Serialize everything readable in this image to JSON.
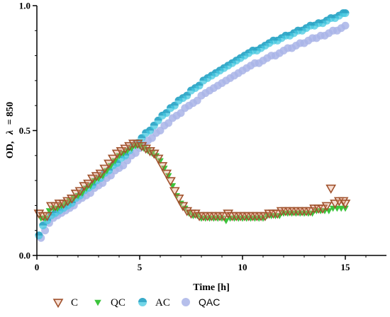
{
  "chart_data": {
    "type": "scatter",
    "title": "",
    "xlabel": "Time [h]",
    "ylabel_prefix": "OD,",
    "ylabel_lambda": "λ",
    "ylabel_suffix": "= 850",
    "xlim": [
      0,
      17
    ],
    "ylim": [
      0,
      1
    ],
    "xticks": [
      "0",
      "5",
      "10",
      "15"
    ],
    "yticks": [
      "0.0",
      "0.5",
      "1.0"
    ],
    "grid": false,
    "legend_position": "bottom",
    "series": [
      {
        "name": "C",
        "marker": "triangle-down-open",
        "color": "#a0522d",
        "fill": "#e8a080",
        "points": [
          [
            0.1,
            0.17
          ],
          [
            0.3,
            0.16
          ],
          [
            0.5,
            0.16
          ],
          [
            0.7,
            0.2
          ],
          [
            0.9,
            0.2
          ],
          [
            1.1,
            0.21
          ],
          [
            1.3,
            0.21
          ],
          [
            1.5,
            0.22
          ],
          [
            1.7,
            0.23
          ],
          [
            1.9,
            0.25
          ],
          [
            2.1,
            0.26
          ],
          [
            2.3,
            0.28
          ],
          [
            2.5,
            0.29
          ],
          [
            2.7,
            0.31
          ],
          [
            2.9,
            0.32
          ],
          [
            3.1,
            0.33
          ],
          [
            3.3,
            0.35
          ],
          [
            3.5,
            0.37
          ],
          [
            3.7,
            0.39
          ],
          [
            3.9,
            0.41
          ],
          [
            4.1,
            0.42
          ],
          [
            4.3,
            0.43
          ],
          [
            4.5,
            0.44
          ],
          [
            4.7,
            0.45
          ],
          [
            4.9,
            0.45
          ],
          [
            5.1,
            0.44
          ],
          [
            5.3,
            0.43
          ],
          [
            5.5,
            0.42
          ],
          [
            5.7,
            0.41
          ],
          [
            5.9,
            0.39
          ],
          [
            6.1,
            0.36
          ],
          [
            6.3,
            0.33
          ],
          [
            6.5,
            0.3
          ],
          [
            6.7,
            0.26
          ],
          [
            6.9,
            0.23
          ],
          [
            7.1,
            0.2
          ],
          [
            7.3,
            0.18
          ],
          [
            7.5,
            0.17
          ],
          [
            7.7,
            0.17
          ],
          [
            7.9,
            0.16
          ],
          [
            8.1,
            0.16
          ],
          [
            8.3,
            0.16
          ],
          [
            8.5,
            0.16
          ],
          [
            8.7,
            0.16
          ],
          [
            8.9,
            0.16
          ],
          [
            9.1,
            0.16
          ],
          [
            9.3,
            0.17
          ],
          [
            9.5,
            0.16
          ],
          [
            9.7,
            0.16
          ],
          [
            9.9,
            0.16
          ],
          [
            10.1,
            0.16
          ],
          [
            10.3,
            0.16
          ],
          [
            10.5,
            0.16
          ],
          [
            10.7,
            0.16
          ],
          [
            10.9,
            0.16
          ],
          [
            11.1,
            0.16
          ],
          [
            11.3,
            0.17
          ],
          [
            11.5,
            0.17
          ],
          [
            11.7,
            0.17
          ],
          [
            11.9,
            0.18
          ],
          [
            12.1,
            0.18
          ],
          [
            12.3,
            0.18
          ],
          [
            12.5,
            0.18
          ],
          [
            12.7,
            0.18
          ],
          [
            12.9,
            0.18
          ],
          [
            13.1,
            0.18
          ],
          [
            13.3,
            0.18
          ],
          [
            13.5,
            0.19
          ],
          [
            13.7,
            0.19
          ],
          [
            13.9,
            0.19
          ],
          [
            14.1,
            0.2
          ],
          [
            14.3,
            0.27
          ],
          [
            14.5,
            0.21
          ],
          [
            14.7,
            0.22
          ],
          [
            14.9,
            0.22
          ],
          [
            15.0,
            0.21
          ]
        ]
      },
      {
        "name": "QC",
        "marker": "triangle-down-filled",
        "color": "#3cc43c",
        "points": [
          [
            0.2,
            0.15
          ],
          [
            0.4,
            0.15
          ],
          [
            0.6,
            0.18
          ],
          [
            0.8,
            0.19
          ],
          [
            1.0,
            0.19
          ],
          [
            1.2,
            0.2
          ],
          [
            1.4,
            0.21
          ],
          [
            1.6,
            0.22
          ],
          [
            1.8,
            0.23
          ],
          [
            2.0,
            0.24
          ],
          [
            2.2,
            0.25
          ],
          [
            2.4,
            0.27
          ],
          [
            2.6,
            0.28
          ],
          [
            2.8,
            0.3
          ],
          [
            3.0,
            0.31
          ],
          [
            3.2,
            0.32
          ],
          [
            3.4,
            0.34
          ],
          [
            3.6,
            0.36
          ],
          [
            3.8,
            0.38
          ],
          [
            4.0,
            0.4
          ],
          [
            4.2,
            0.41
          ],
          [
            4.4,
            0.42
          ],
          [
            4.6,
            0.43
          ],
          [
            4.8,
            0.44
          ],
          [
            5.0,
            0.44
          ],
          [
            5.2,
            0.43
          ],
          [
            5.4,
            0.42
          ],
          [
            5.6,
            0.41
          ],
          [
            5.8,
            0.4
          ],
          [
            6.0,
            0.38
          ],
          [
            6.2,
            0.35
          ],
          [
            6.4,
            0.32
          ],
          [
            6.6,
            0.28
          ],
          [
            6.8,
            0.24
          ],
          [
            7.0,
            0.21
          ],
          [
            7.2,
            0.19
          ],
          [
            7.4,
            0.17
          ],
          [
            7.6,
            0.16
          ],
          [
            7.8,
            0.16
          ],
          [
            8.0,
            0.15
          ],
          [
            8.2,
            0.15
          ],
          [
            8.4,
            0.15
          ],
          [
            8.6,
            0.15
          ],
          [
            8.8,
            0.15
          ],
          [
            9.0,
            0.15
          ],
          [
            9.2,
            0.14
          ],
          [
            9.4,
            0.15
          ],
          [
            9.6,
            0.15
          ],
          [
            9.8,
            0.15
          ],
          [
            10.0,
            0.15
          ],
          [
            10.2,
            0.15
          ],
          [
            10.4,
            0.15
          ],
          [
            10.6,
            0.15
          ],
          [
            10.8,
            0.15
          ],
          [
            11.0,
            0.15
          ],
          [
            11.2,
            0.16
          ],
          [
            11.4,
            0.16
          ],
          [
            11.6,
            0.16
          ],
          [
            11.8,
            0.16
          ],
          [
            12.0,
            0.17
          ],
          [
            12.2,
            0.17
          ],
          [
            12.4,
            0.17
          ],
          [
            12.6,
            0.17
          ],
          [
            12.8,
            0.17
          ],
          [
            13.0,
            0.17
          ],
          [
            13.2,
            0.17
          ],
          [
            13.4,
            0.17
          ],
          [
            13.6,
            0.18
          ],
          [
            13.8,
            0.18
          ],
          [
            14.0,
            0.18
          ],
          [
            14.2,
            0.18
          ],
          [
            14.4,
            0.19
          ],
          [
            14.6,
            0.19
          ],
          [
            14.8,
            0.19
          ],
          [
            15.0,
            0.19
          ]
        ]
      },
      {
        "name": "AC",
        "marker": "circle-half",
        "color": "#45c8e0",
        "points": [
          [
            0.1,
            0.08
          ],
          [
            0.3,
            0.12
          ],
          [
            0.5,
            0.14
          ],
          [
            0.7,
            0.16
          ],
          [
            0.9,
            0.17
          ],
          [
            1.1,
            0.18
          ],
          [
            1.3,
            0.19
          ],
          [
            1.5,
            0.2
          ],
          [
            1.7,
            0.21
          ],
          [
            1.9,
            0.23
          ],
          [
            2.1,
            0.24
          ],
          [
            2.3,
            0.26
          ],
          [
            2.5,
            0.27
          ],
          [
            2.7,
            0.28
          ],
          [
            2.9,
            0.3
          ],
          [
            3.1,
            0.31
          ],
          [
            3.3,
            0.33
          ],
          [
            3.5,
            0.34
          ],
          [
            3.7,
            0.36
          ],
          [
            3.9,
            0.37
          ],
          [
            4.1,
            0.39
          ],
          [
            4.3,
            0.4
          ],
          [
            4.5,
            0.42
          ],
          [
            4.7,
            0.44
          ],
          [
            4.9,
            0.45
          ],
          [
            5.1,
            0.47
          ],
          [
            5.3,
            0.49
          ],
          [
            5.5,
            0.5
          ],
          [
            5.7,
            0.52
          ],
          [
            5.9,
            0.54
          ],
          [
            6.1,
            0.56
          ],
          [
            6.3,
            0.57
          ],
          [
            6.5,
            0.59
          ],
          [
            6.7,
            0.6
          ],
          [
            6.9,
            0.62
          ],
          [
            7.1,
            0.63
          ],
          [
            7.3,
            0.64
          ],
          [
            7.5,
            0.66
          ],
          [
            7.7,
            0.67
          ],
          [
            7.9,
            0.68
          ],
          [
            8.1,
            0.7
          ],
          [
            8.3,
            0.71
          ],
          [
            8.5,
            0.72
          ],
          [
            8.7,
            0.73
          ],
          [
            8.9,
            0.74
          ],
          [
            9.1,
            0.75
          ],
          [
            9.3,
            0.76
          ],
          [
            9.5,
            0.77
          ],
          [
            9.7,
            0.78
          ],
          [
            9.9,
            0.79
          ],
          [
            10.1,
            0.8
          ],
          [
            10.3,
            0.81
          ],
          [
            10.5,
            0.82
          ],
          [
            10.7,
            0.82
          ],
          [
            10.9,
            0.83
          ],
          [
            11.1,
            0.84
          ],
          [
            11.3,
            0.85
          ],
          [
            11.5,
            0.86
          ],
          [
            11.7,
            0.86
          ],
          [
            11.9,
            0.87
          ],
          [
            12.1,
            0.88
          ],
          [
            12.3,
            0.88
          ],
          [
            12.5,
            0.89
          ],
          [
            12.7,
            0.9
          ],
          [
            12.9,
            0.9
          ],
          [
            13.1,
            0.91
          ],
          [
            13.3,
            0.92
          ],
          [
            13.5,
            0.92
          ],
          [
            13.7,
            0.93
          ],
          [
            13.9,
            0.93
          ],
          [
            14.1,
            0.94
          ],
          [
            14.3,
            0.95
          ],
          [
            14.5,
            0.95
          ],
          [
            14.7,
            0.96
          ],
          [
            14.9,
            0.97
          ],
          [
            15.0,
            0.97
          ]
        ]
      },
      {
        "name": "QAC",
        "marker": "circle-filled",
        "color": "#a9b4e8",
        "points": [
          [
            0.2,
            0.07
          ],
          [
            0.4,
            0.1
          ],
          [
            0.6,
            0.13
          ],
          [
            0.8,
            0.15
          ],
          [
            1.0,
            0.16
          ],
          [
            1.2,
            0.17
          ],
          [
            1.4,
            0.18
          ],
          [
            1.6,
            0.19
          ],
          [
            1.8,
            0.2
          ],
          [
            2.0,
            0.22
          ],
          [
            2.2,
            0.23
          ],
          [
            2.4,
            0.24
          ],
          [
            2.6,
            0.25
          ],
          [
            2.8,
            0.27
          ],
          [
            3.0,
            0.28
          ],
          [
            3.2,
            0.29
          ],
          [
            3.4,
            0.31
          ],
          [
            3.6,
            0.32
          ],
          [
            3.8,
            0.34
          ],
          [
            4.0,
            0.35
          ],
          [
            4.2,
            0.36
          ],
          [
            4.4,
            0.38
          ],
          [
            4.6,
            0.4
          ],
          [
            4.8,
            0.41
          ],
          [
            5.0,
            0.43
          ],
          [
            5.2,
            0.44
          ],
          [
            5.4,
            0.46
          ],
          [
            5.6,
            0.47
          ],
          [
            5.8,
            0.49
          ],
          [
            6.0,
            0.5
          ],
          [
            6.2,
            0.52
          ],
          [
            6.4,
            0.53
          ],
          [
            6.6,
            0.55
          ],
          [
            6.8,
            0.56
          ],
          [
            7.0,
            0.57
          ],
          [
            7.2,
            0.59
          ],
          [
            7.4,
            0.6
          ],
          [
            7.6,
            0.61
          ],
          [
            7.8,
            0.62
          ],
          [
            8.0,
            0.64
          ],
          [
            8.2,
            0.65
          ],
          [
            8.4,
            0.66
          ],
          [
            8.6,
            0.67
          ],
          [
            8.8,
            0.68
          ],
          [
            9.0,
            0.69
          ],
          [
            9.2,
            0.7
          ],
          [
            9.4,
            0.71
          ],
          [
            9.6,
            0.72
          ],
          [
            9.8,
            0.73
          ],
          [
            10.0,
            0.74
          ],
          [
            10.2,
            0.75
          ],
          [
            10.4,
            0.76
          ],
          [
            10.6,
            0.77
          ],
          [
            10.8,
            0.77
          ],
          [
            11.0,
            0.78
          ],
          [
            11.2,
            0.79
          ],
          [
            11.4,
            0.8
          ],
          [
            11.6,
            0.8
          ],
          [
            11.8,
            0.81
          ],
          [
            12.0,
            0.82
          ],
          [
            12.2,
            0.83
          ],
          [
            12.4,
            0.83
          ],
          [
            12.6,
            0.84
          ],
          [
            12.8,
            0.85
          ],
          [
            13.0,
            0.85
          ],
          [
            13.2,
            0.86
          ],
          [
            13.4,
            0.87
          ],
          [
            13.6,
            0.87
          ],
          [
            13.8,
            0.88
          ],
          [
            14.0,
            0.88
          ],
          [
            14.2,
            0.89
          ],
          [
            14.4,
            0.9
          ],
          [
            14.6,
            0.9
          ],
          [
            14.8,
            0.91
          ],
          [
            15.0,
            0.92
          ]
        ]
      }
    ]
  }
}
